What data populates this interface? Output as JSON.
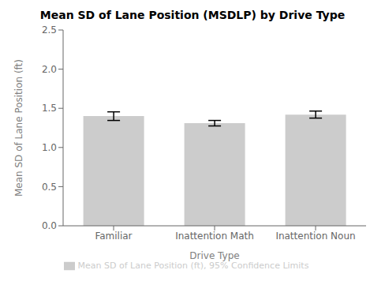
{
  "chart_data": {
    "type": "bar",
    "title": "Mean SD of Lane Position (MSDLP) by Drive Type",
    "xlabel": "Drive Type",
    "ylabel": "Mean SD of Lane Position (ft)",
    "categories": [
      "Familiar",
      "Inattention Math",
      "Inattention Noun"
    ],
    "series": [
      {
        "name": "Mean SD of Lane Position (ft), 95% Confidence Limits",
        "color": "#cccccc",
        "values": [
          1.4,
          1.31,
          1.42
        ],
        "errors": [
          0.055,
          0.035,
          0.045
        ]
      }
    ],
    "ylim": [
      0.0,
      2.5
    ],
    "yticks": [
      {
        "value": 0,
        "label": "0.0"
      },
      0.5,
      {
        "value": 1,
        "label": "1.0"
      },
      1.5,
      {
        "value": 2,
        "label": "2.0"
      },
      2.5
    ],
    "grid": false,
    "legend": "bottom"
  }
}
